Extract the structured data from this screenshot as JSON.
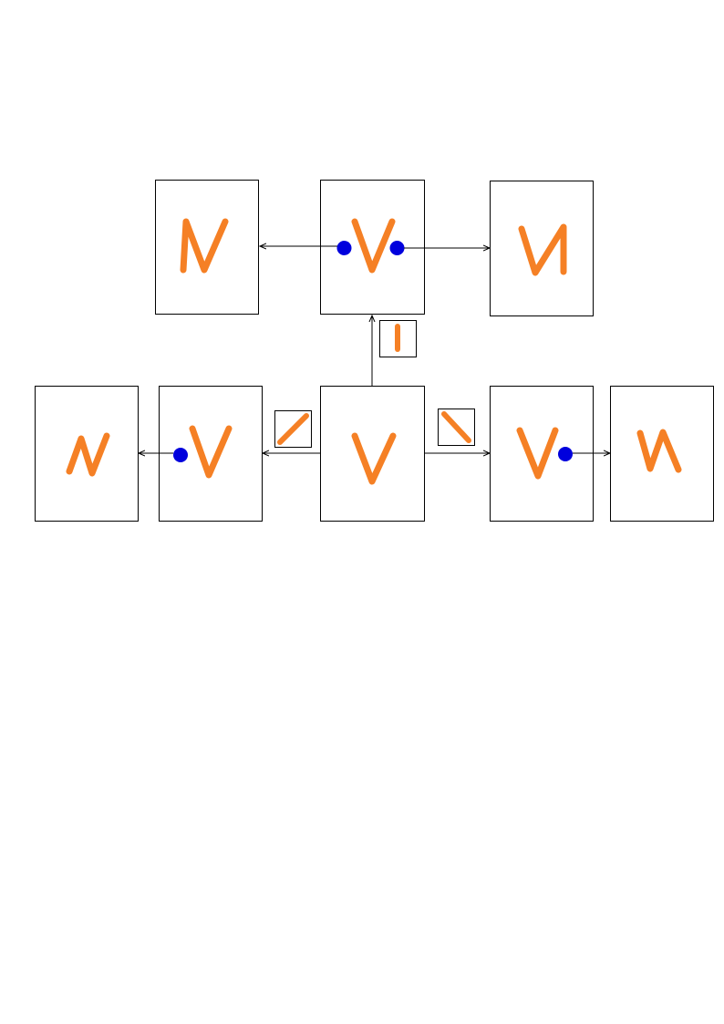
{
  "diagram": {
    "colors": {
      "stroke_letter": "#f58025",
      "attachment_point": "#0000dd",
      "frame": "#000000",
      "background": "#ffffff"
    },
    "panels": [
      {
        "id": "center",
        "glyph": "V",
        "description_icon": "v-shape-icon"
      },
      {
        "id": "top-center",
        "glyph": "V",
        "attachment_points": 2
      },
      {
        "id": "top-left",
        "glyph": "N"
      },
      {
        "id": "top-right",
        "glyph": "N"
      },
      {
        "id": "mid-left",
        "glyph": "V",
        "attachment_points": 1
      },
      {
        "id": "far-left",
        "glyph": "N"
      },
      {
        "id": "mid-right",
        "glyph": "V",
        "attachment_points": 1
      },
      {
        "id": "far-right",
        "glyph": "N"
      }
    ],
    "added_strokes": [
      "vertical-stroke-icon",
      "forward-slash-stroke-icon",
      "back-slash-stroke-icon"
    ]
  }
}
